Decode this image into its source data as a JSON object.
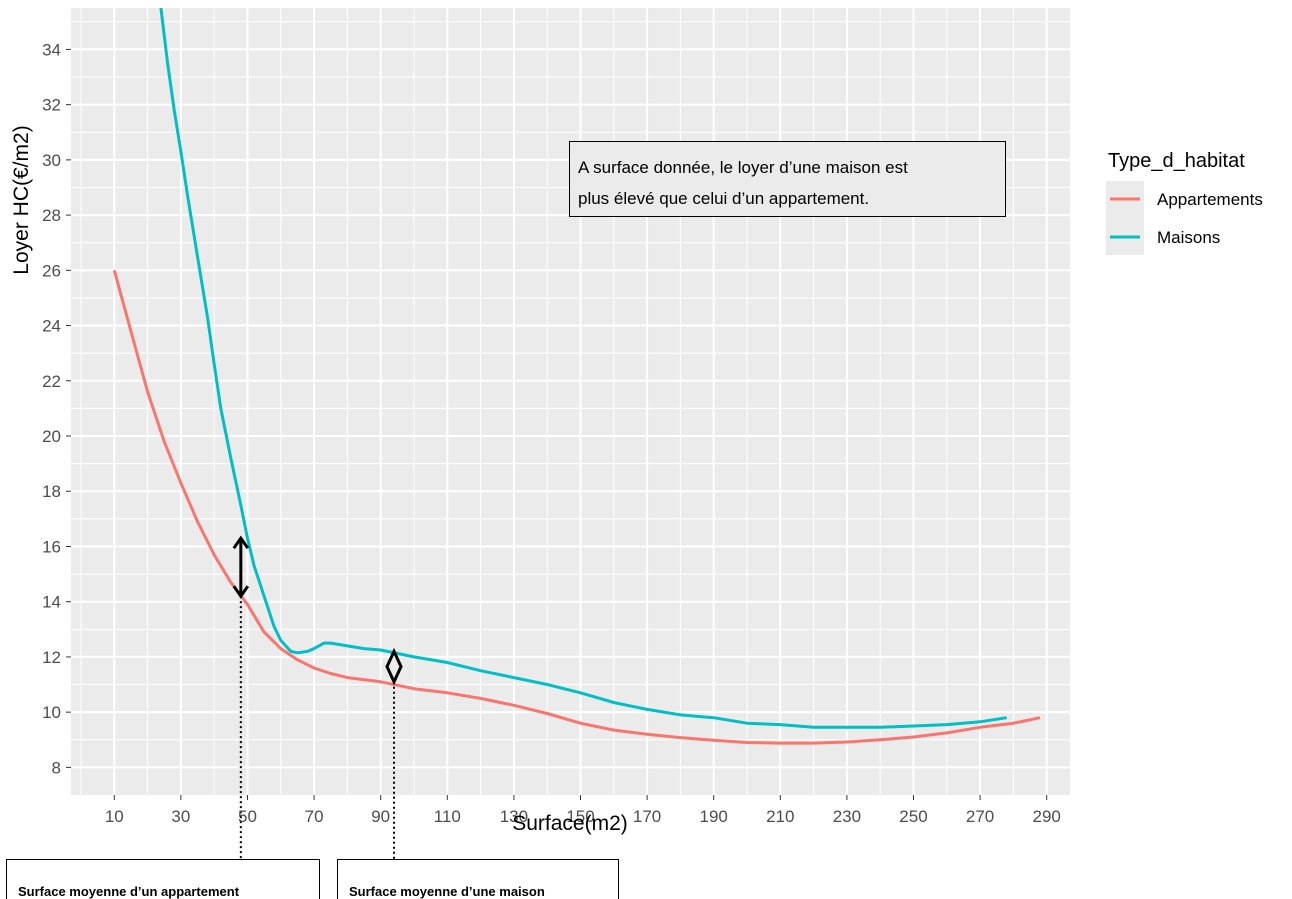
{
  "chart_data": {
    "type": "line",
    "title": "",
    "xlabel": "Surface(m2)",
    "ylabel": "Loyer HC(€/m2)",
    "xlim": [
      -3,
      297
    ],
    "ylim": [
      7,
      35.5
    ],
    "x_ticks": [
      10,
      30,
      50,
      70,
      90,
      110,
      130,
      150,
      170,
      190,
      210,
      230,
      250,
      270,
      290
    ],
    "y_ticks": [
      8,
      10,
      12,
      14,
      16,
      18,
      20,
      22,
      24,
      26,
      28,
      30,
      32,
      34
    ],
    "grid": true,
    "legend": {
      "title": "Type_d_habitat",
      "placement": "right",
      "entries": [
        "Appartements",
        "Maisons"
      ]
    },
    "series": [
      {
        "name": "Appartements",
        "color": "#F8766D",
        "x": [
          10,
          15,
          20,
          25,
          30,
          35,
          40,
          45,
          50,
          55,
          60,
          65,
          70,
          75,
          80,
          90,
          100,
          110,
          120,
          130,
          140,
          150,
          160,
          170,
          180,
          190,
          200,
          210,
          220,
          230,
          240,
          250,
          260,
          270,
          280,
          288
        ],
        "y": [
          26.0,
          23.8,
          21.6,
          19.8,
          18.3,
          16.9,
          15.7,
          14.7,
          13.9,
          12.9,
          12.3,
          11.9,
          11.6,
          11.4,
          11.25,
          11.1,
          10.85,
          10.7,
          10.5,
          10.25,
          9.95,
          9.6,
          9.35,
          9.2,
          9.08,
          8.98,
          8.9,
          8.88,
          8.88,
          8.92,
          9.0,
          9.1,
          9.25,
          9.45,
          9.6,
          9.8
        ]
      },
      {
        "name": "Maisons",
        "color": "#00BFC4",
        "x": [
          24,
          26,
          28,
          30,
          32,
          35,
          38,
          40,
          42,
          45,
          48,
          50,
          52,
          55,
          58,
          60,
          63,
          65,
          68,
          70,
          73,
          75,
          80,
          85,
          90,
          100,
          110,
          120,
          130,
          140,
          150,
          160,
          170,
          180,
          190,
          200,
          210,
          220,
          230,
          240,
          250,
          260,
          270,
          278
        ],
        "y": [
          35.5,
          33.5,
          31.8,
          30.3,
          28.7,
          26.5,
          24.3,
          22.6,
          21.0,
          19.2,
          17.5,
          16.3,
          15.3,
          14.2,
          13.1,
          12.6,
          12.2,
          12.15,
          12.2,
          12.3,
          12.5,
          12.5,
          12.4,
          12.3,
          12.25,
          12.0,
          11.8,
          11.5,
          11.25,
          11.0,
          10.7,
          10.35,
          10.1,
          9.9,
          9.8,
          9.6,
          9.55,
          9.45,
          9.45,
          9.45,
          9.5,
          9.55,
          9.65,
          9.8
        ]
      }
    ],
    "annotations": {
      "note": "A surface donnée, le loyer d’une maison est\nplus élevé que celui d’un appartement.",
      "captions": {
        "appartement": "Surface moyenne d’un appartement",
        "maison": "Surface moyenne d’une maison"
      },
      "markers": {
        "appartement_x": 48,
        "appartement_range": [
          14.2,
          16.3
        ],
        "maison_x": 94,
        "maison_range": [
          11.1,
          12.2
        ]
      }
    }
  }
}
